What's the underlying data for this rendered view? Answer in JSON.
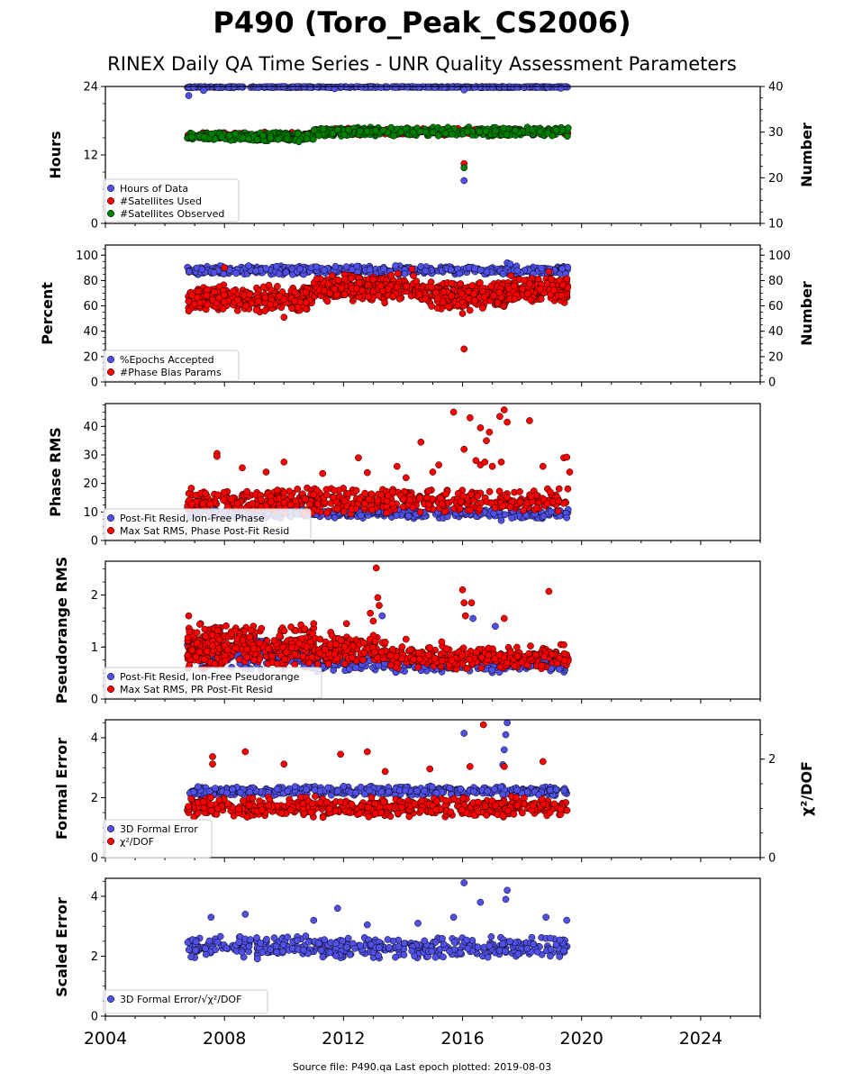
{
  "figure": {
    "title": "P490 (Toro_Peak_CS2006)",
    "subtitle": "RINEX Daily QA Time Series - UNR Quality Assessment Parameters",
    "source_note": "Source file: P490.qa Last epoch plotted: 2019-08-03"
  },
  "colors": {
    "blue": "#5050e6",
    "red": "#ff0000",
    "green": "#008000",
    "edge": "#000000"
  },
  "chart_data": [
    {
      "type": "scatter",
      "xlim": [
        2004,
        2026
      ],
      "x_ticks": [
        2004,
        2008,
        2012,
        2016,
        2020,
        2024
      ],
      "ylabel": "Hours",
      "ylim": [
        0,
        24
      ],
      "y_ticks": [
        0,
        12,
        24
      ],
      "y2label": "Number",
      "y2lim": [
        10,
        40
      ],
      "y2_ticks": [
        10,
        20,
        30,
        40
      ],
      "legend_position": "lower-left",
      "series": [
        {
          "name": "Hours of Data",
          "color": "blue",
          "axis": "left",
          "points": [
            [
              2006.8,
              22.4
            ],
            [
              2007.3,
              23.3
            ],
            [
              2011.7,
              23.6
            ],
            [
              2016.05,
              23.4
            ],
            [
              2016.05,
              7.5
            ],
            [
              2019.3,
              23.7
            ]
          ],
          "bands": [
            [
              2006.75,
              2019.55,
              23.8,
              24.0,
              420
            ]
          ]
        },
        {
          "name": "#Satellites Used",
          "color": "red",
          "axis": "right",
          "points": [
            [
              2009.35,
              30.0
            ],
            [
              2016.05,
              23.1
            ],
            [
              2012.2,
              30.5
            ]
          ],
          "bands": [
            [
              2006.75,
              2011.0,
              28.5,
              30.0,
              160
            ],
            [
              2011.0,
              2019.55,
              29.3,
              30.9,
              240
            ]
          ]
        },
        {
          "name": "#Satellites Observed",
          "color": "green",
          "axis": "right",
          "points": [
            [
              2016.05,
              22.2
            ],
            [
              2007.9,
              29.0
            ],
            [
              2010.5,
              27.9
            ],
            [
              2013.6,
              31.0
            ]
          ],
          "bands": [
            [
              2006.75,
              2011.0,
              28.0,
              30.0,
              260
            ],
            [
              2011.0,
              2019.55,
              29.0,
              31.2,
              380
            ]
          ]
        }
      ]
    },
    {
      "type": "scatter",
      "xlim": [
        2004,
        2026
      ],
      "x_ticks": [
        2004,
        2008,
        2012,
        2016,
        2020,
        2024
      ],
      "ylabel": "Percent",
      "ylim": [
        0,
        108
      ],
      "y_ticks": [
        0,
        20,
        40,
        60,
        80,
        100
      ],
      "y2label": "Number",
      "y2lim": [
        0,
        108
      ],
      "y2_ticks": [
        0,
        20,
        40,
        60,
        80,
        100
      ],
      "legend_position": "lower-left",
      "series": [
        {
          "name": "%Epochs Accepted",
          "color": "blue",
          "axis": "left",
          "points": [
            [
              2017.5,
              94
            ],
            [
              2017.6,
              93
            ],
            [
              2014.6,
              91
            ]
          ],
          "bands": [
            [
              2006.75,
              2019.55,
              84,
              92,
              460
            ]
          ]
        },
        {
          "name": "#Phase Bias Params",
          "color": "red",
          "axis": "right",
          "points": [
            [
              2016.05,
              26
            ],
            [
              2008.0,
              90
            ],
            [
              2014.3,
              89
            ],
            [
              2006.8,
              56
            ],
            [
              2010.0,
              51
            ],
            [
              2016.0,
              54
            ],
            [
              2018.9,
              87
            ]
          ],
          "bands": [
            [
              2006.75,
              2011.0,
              55,
              77,
              300
            ],
            [
              2011.0,
              2014.5,
              62,
              86,
              260
            ],
            [
              2014.5,
              2017.5,
              56,
              80,
              220
            ],
            [
              2017.5,
              2019.55,
              62,
              84,
              180
            ]
          ]
        }
      ]
    },
    {
      "type": "scatter",
      "xlim": [
        2004,
        2026
      ],
      "x_ticks": [
        2004,
        2008,
        2012,
        2016,
        2020,
        2024
      ],
      "ylabel": "Phase RMS",
      "ylim": [
        0,
        48
      ],
      "y_ticks": [
        0,
        10,
        20,
        30,
        40
      ],
      "legend_position": "lower-left",
      "series": [
        {
          "name": "Post-Fit Resid, Ion-Free Phase",
          "color": "blue",
          "axis": "left",
          "points": [
            [
              2017.3,
              7
            ],
            [
              2019.5,
              8
            ]
          ],
          "bands": [
            [
              2006.75,
              2019.55,
              7.5,
              11.5,
              420
            ]
          ]
        },
        {
          "name": "Max Sat RMS, Phase Post-Fit Resid",
          "color": "red",
          "axis": "left",
          "points": [
            [
              2007.75,
              30.5
            ],
            [
              2007.75,
              29.5
            ],
            [
              2010.0,
              27.5
            ],
            [
              2012.5,
              29.0
            ],
            [
              2014.6,
              34.5
            ],
            [
              2015.7,
              45.0
            ],
            [
              2016.25,
              43.0
            ],
            [
              2016.6,
              39.5
            ],
            [
              2017.25,
              43.5
            ],
            [
              2017.4,
              45.8
            ],
            [
              2017.5,
              41.5
            ],
            [
              2018.25,
              42.0
            ],
            [
              2016.9,
              38.0
            ],
            [
              2016.8,
              35.0
            ],
            [
              2016.05,
              32.0
            ],
            [
              2016.45,
              28.0
            ],
            [
              2016.6,
              26.5
            ],
            [
              2017.0,
              26.0
            ],
            [
              2017.3,
              27.5
            ],
            [
              2013.8,
              26.0
            ],
            [
              2015.2,
              26.5
            ],
            [
              2018.7,
              26.0
            ],
            [
              2019.4,
              29.0
            ],
            [
              2019.5,
              29.2
            ],
            [
              2019.6,
              24.0
            ],
            [
              2008.6,
              25.5
            ],
            [
              2009.4,
              24.0
            ],
            [
              2011.3,
              23.5
            ],
            [
              2012.8,
              23.8
            ],
            [
              2014.1,
              22.0
            ],
            [
              2015.0,
              24.0
            ],
            [
              2016.75,
              27.5
            ]
          ],
          "bands": [
            [
              2006.75,
              2019.55,
              9,
              19,
              520
            ]
          ]
        }
      ]
    },
    {
      "type": "scatter",
      "xlim": [
        2004,
        2026
      ],
      "x_ticks": [
        2004,
        2008,
        2012,
        2016,
        2020,
        2024
      ],
      "ylabel": "Pseudorange RMS",
      "ylim": [
        0,
        2.65
      ],
      "y_ticks": [
        0,
        1,
        2
      ],
      "legend_position": "lower-left",
      "series": [
        {
          "name": "Post-Fit Resid, Ion-Free Pseudorange",
          "color": "blue",
          "axis": "left",
          "points": [
            [
              2016.35,
              1.55
            ],
            [
              2017.1,
              1.4
            ],
            [
              2013.3,
              1.6
            ],
            [
              2010.9,
              1.3
            ],
            [
              2014.3,
              0.95
            ]
          ],
          "bands": [
            [
              2006.75,
              2011.0,
              0.55,
              1.2,
              220
            ],
            [
              2011.0,
              2019.55,
              0.5,
              0.85,
              300
            ]
          ]
        },
        {
          "name": "Max Sat RMS, PR Post-Fit Resid",
          "color": "red",
          "axis": "left",
          "points": [
            [
              2013.1,
              2.52
            ],
            [
              2013.15,
              1.95
            ],
            [
              2013.2,
              1.8
            ],
            [
              2012.9,
              1.65
            ],
            [
              2016.0,
              2.1
            ],
            [
              2016.05,
              1.85
            ],
            [
              2016.3,
              1.85
            ],
            [
              2018.9,
              2.07
            ],
            [
              2012.1,
              1.45
            ],
            [
              2013.0,
              1.5
            ],
            [
              2011.0,
              1.45
            ],
            [
              2006.8,
              1.6
            ],
            [
              2010.7,
              1.35
            ],
            [
              2017.4,
              1.55
            ],
            [
              2016.1,
              1.6
            ],
            [
              2015.3,
              1.1
            ],
            [
              2014.1,
              1.15
            ]
          ],
          "bands": [
            [
              2006.75,
              2008.0,
              0.55,
              1.5,
              160
            ],
            [
              2008.0,
              2011.0,
              0.6,
              1.45,
              220
            ],
            [
              2011.0,
              2013.5,
              0.6,
              1.3,
              160
            ],
            [
              2013.5,
              2019.55,
              0.55,
              1.05,
              300
            ]
          ]
        }
      ]
    },
    {
      "type": "scatter",
      "xlim": [
        2004,
        2026
      ],
      "x_ticks": [
        2004,
        2008,
        2012,
        2016,
        2020,
        2024
      ],
      "ylabel": "Formal Error",
      "ylim": [
        0,
        4.6
      ],
      "y_ticks": [
        0,
        2,
        4
      ],
      "y2label": "χ²/DOF",
      "y2lim": [
        0,
        2.8
      ],
      "y2_ticks": [
        0,
        2
      ],
      "legend_position": "lower-left",
      "series": [
        {
          "name": "3D Formal Error",
          "color": "blue",
          "axis": "left",
          "points": [
            [
              2016.05,
              4.15
            ],
            [
              2017.5,
              4.5
            ],
            [
              2017.45,
              4.1
            ],
            [
              2017.4,
              3.6
            ],
            [
              2017.35,
              3.1
            ]
          ],
          "bands": [
            [
              2006.75,
              2019.55,
              2.05,
              2.4,
              460
            ]
          ]
        },
        {
          "name": "χ²/DOF",
          "color": "red",
          "axis": "right",
          "points": [
            [
              2016.7,
              2.7
            ],
            [
              2007.6,
              2.05
            ],
            [
              2008.7,
              2.15
            ],
            [
              2011.9,
              2.1
            ],
            [
              2012.8,
              2.15
            ],
            [
              2016.25,
              1.85
            ],
            [
              2017.4,
              1.85
            ],
            [
              2018.7,
              1.95
            ],
            [
              2010.0,
              1.9
            ],
            [
              2013.4,
              1.75
            ],
            [
              2014.9,
              1.8
            ],
            [
              2007.6,
              1.9
            ]
          ],
          "bands": [
            [
              2006.75,
              2019.55,
              0.8,
              1.25,
              560
            ]
          ]
        }
      ]
    },
    {
      "type": "scatter",
      "xlim": [
        2004,
        2026
      ],
      "x_ticks": [
        2004,
        2008,
        2012,
        2016,
        2020,
        2024
      ],
      "ylabel": "Scaled Error",
      "ylim": [
        0,
        4.6
      ],
      "y_ticks": [
        0,
        2,
        4
      ],
      "legend_position": "lower-left",
      "series": [
        {
          "name": "3D Formal Error/√χ²/DOF",
          "color": "blue",
          "axis": "left",
          "points": [
            [
              2016.05,
              4.45
            ],
            [
              2017.5,
              4.2
            ],
            [
              2016.6,
              3.8
            ],
            [
              2017.45,
              3.9
            ],
            [
              2011.8,
              3.6
            ],
            [
              2007.55,
              3.3
            ],
            [
              2008.7,
              3.4
            ],
            [
              2011.0,
              3.2
            ],
            [
              2012.8,
              3.05
            ],
            [
              2014.5,
              3.1
            ],
            [
              2015.7,
              3.3
            ],
            [
              2018.8,
              3.3
            ],
            [
              2019.5,
              3.2
            ]
          ],
          "bands": [
            [
              2006.75,
              2019.55,
              1.9,
              2.7,
              440
            ]
          ]
        }
      ]
    }
  ]
}
